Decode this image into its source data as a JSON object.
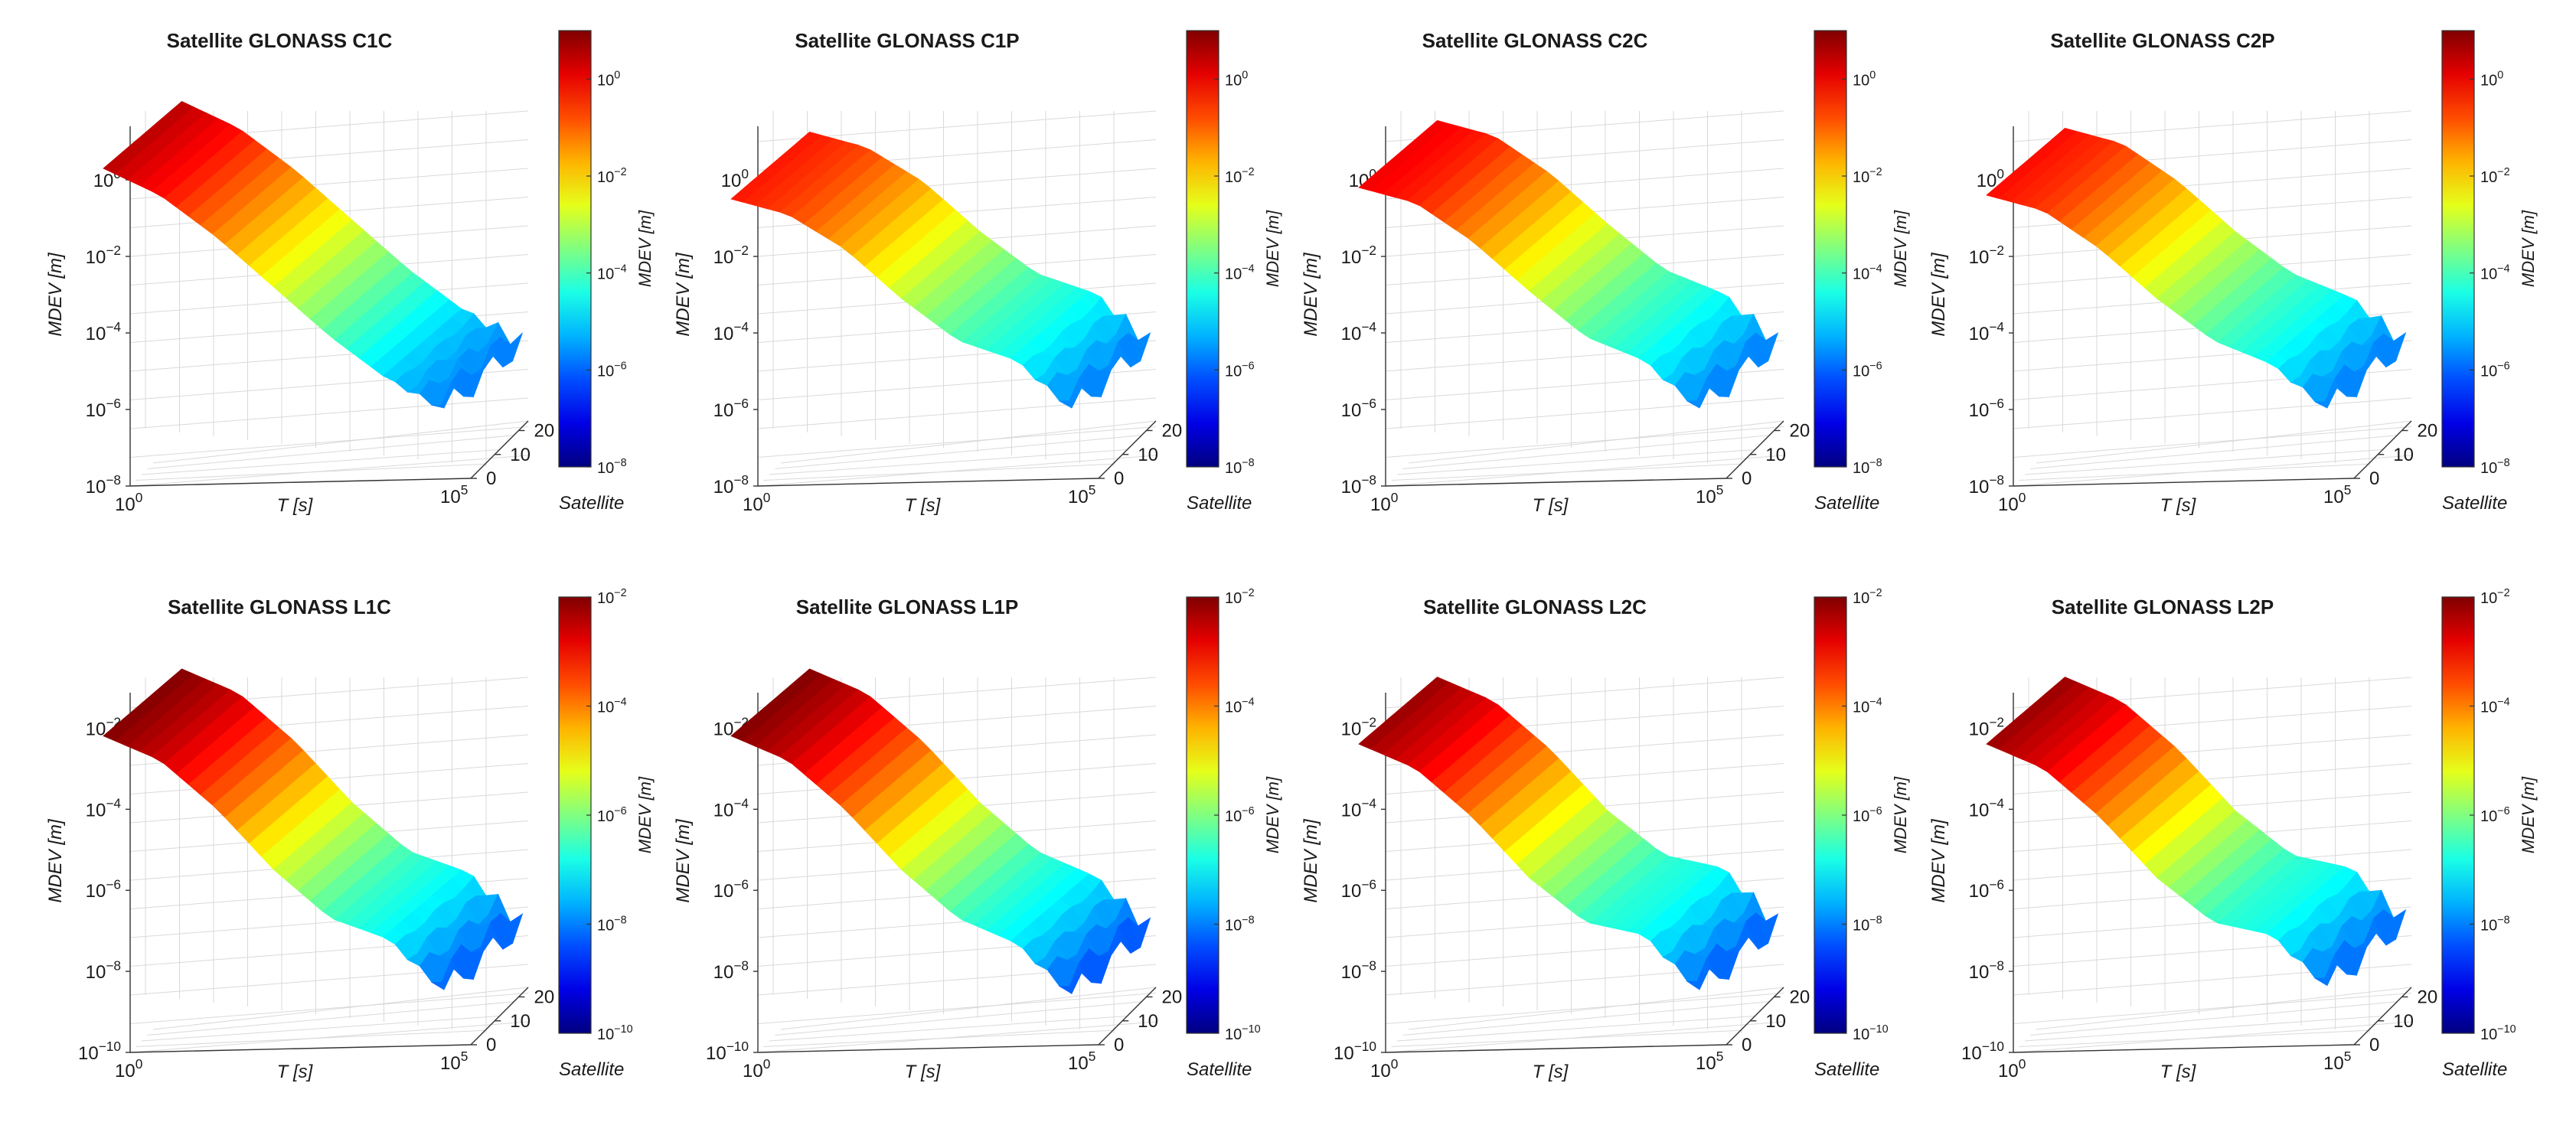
{
  "figure": {
    "panels": [
      {
        "title": "Satellite GLONASS C1C",
        "ylabel": "MDEV [m]",
        "xlabel": "T [s]",
        "zlabel": "Satellite",
        "cblabel": "MDEV [m]"
      },
      {
        "title": "Satellite GLONASS C1P",
        "ylabel": "MDEV [m]",
        "xlabel": "T [s]",
        "zlabel": "Satellite",
        "cblabel": "MDEV [m]"
      },
      {
        "title": "Satellite GLONASS C2C",
        "ylabel": "MDEV [m]",
        "xlabel": "T [s]",
        "zlabel": "Satellite",
        "cblabel": "MDEV [m]"
      },
      {
        "title": "Satellite GLONASS C2P",
        "ylabel": "MDEV [m]",
        "xlabel": "T [s]",
        "zlabel": "Satellite",
        "cblabel": "MDEV [m]"
      },
      {
        "title": "Satellite GLONASS L1C",
        "ylabel": "MDEV [m]",
        "xlabel": "T [s]",
        "zlabel": "Satellite",
        "cblabel": "MDEV [m]"
      },
      {
        "title": "Satellite GLONASS L1P",
        "ylabel": "MDEV [m]",
        "xlabel": "T [s]",
        "zlabel": "Satellite",
        "cblabel": "MDEV [m]"
      },
      {
        "title": "Satellite GLONASS L2C",
        "ylabel": "MDEV [m]",
        "xlabel": "T [s]",
        "zlabel": "Satellite",
        "cblabel": "MDEV [m]"
      },
      {
        "title": "Satellite GLONASS L2P",
        "ylabel": "MDEV [m]",
        "xlabel": "T [s]",
        "zlabel": "Satellite",
        "cblabel": "MDEV [m]"
      }
    ]
  },
  "chart_data": [
    {
      "type": "surface",
      "title": "Satellite GLONASS C1C",
      "xlabel": "T [s]",
      "ylabel": "MDEV [m]",
      "zlabel": "Satellite",
      "colorbar_label": "MDEV [m]",
      "x_scale": "log",
      "x_range_exp": [
        0,
        5
      ],
      "x_ticks_exp": [
        0,
        5
      ],
      "y_scale": "log",
      "y_range_exp": [
        -8,
        1
      ],
      "y_ticks_exp": [
        0,
        -2,
        -4,
        -6,
        -8
      ],
      "sat_ticks": [
        0,
        10,
        20
      ],
      "colorbar_ticks_exp": [
        0,
        -2,
        -4,
        -6,
        -8
      ],
      "colorbar_range_exp": [
        -8,
        1
      ],
      "mdev_exp_along_T": [
        0.5,
        -0.2,
        -1.3,
        -2.6,
        -3.9,
        -5.0,
        -5.8
      ]
    },
    {
      "type": "surface",
      "title": "Satellite GLONASS C1P",
      "xlabel": "T [s]",
      "ylabel": "MDEV [m]",
      "zlabel": "Satellite",
      "colorbar_label": "MDEV [m]",
      "x_scale": "log",
      "x_range_exp": [
        0,
        5
      ],
      "x_ticks_exp": [
        0,
        5
      ],
      "y_scale": "log",
      "y_range_exp": [
        -8,
        1
      ],
      "y_ticks_exp": [
        0,
        -2,
        -4,
        -6,
        -8
      ],
      "sat_ticks": [
        0,
        10,
        20
      ],
      "colorbar_ticks_exp": [
        0,
        -2,
        -4,
        -6,
        -8
      ],
      "colorbar_range_exp": [
        -8,
        1
      ],
      "mdev_exp_along_T": [
        -0.3,
        -0.7,
        -1.6,
        -2.9,
        -4.0,
        -4.5,
        -5.8
      ]
    },
    {
      "type": "surface",
      "title": "Satellite GLONASS C2C",
      "xlabel": "T [s]",
      "ylabel": "MDEV [m]",
      "zlabel": "Satellite",
      "colorbar_label": "MDEV [m]",
      "x_scale": "log",
      "x_range_exp": [
        0,
        5
      ],
      "x_ticks_exp": [
        0,
        5
      ],
      "y_scale": "log",
      "y_range_exp": [
        -8,
        1
      ],
      "y_ticks_exp": [
        0,
        -2,
        -4,
        -6,
        -8
      ],
      "sat_ticks": [
        0,
        10,
        20
      ],
      "colorbar_ticks_exp": [
        0,
        -2,
        -4,
        -6,
        -8
      ],
      "colorbar_range_exp": [
        -8,
        1
      ],
      "mdev_exp_along_T": [
        0.0,
        -0.4,
        -1.4,
        -2.7,
        -3.9,
        -4.5,
        -5.8
      ]
    },
    {
      "type": "surface",
      "title": "Satellite GLONASS C2P",
      "xlabel": "T [s]",
      "ylabel": "MDEV [m]",
      "zlabel": "Satellite",
      "colorbar_label": "MDEV [m]",
      "x_scale": "log",
      "x_range_exp": [
        0,
        5
      ],
      "x_ticks_exp": [
        0,
        5
      ],
      "y_scale": "log",
      "y_range_exp": [
        -8,
        1
      ],
      "y_ticks_exp": [
        0,
        -2,
        -4,
        -6,
        -8
      ],
      "sat_ticks": [
        0,
        10,
        20
      ],
      "colorbar_ticks_exp": [
        0,
        -2,
        -4,
        -6,
        -8
      ],
      "colorbar_range_exp": [
        -8,
        1
      ],
      "mdev_exp_along_T": [
        -0.2,
        -0.6,
        -1.6,
        -2.9,
        -4.0,
        -4.6,
        -5.8
      ]
    },
    {
      "type": "surface",
      "title": "Satellite GLONASS L1C",
      "xlabel": "T [s]",
      "ylabel": "MDEV [m]",
      "zlabel": "Satellite",
      "colorbar_label": "MDEV [m]",
      "x_scale": "log",
      "x_range_exp": [
        0,
        5
      ],
      "x_ticks_exp": [
        0,
        5
      ],
      "y_scale": "log",
      "y_range_exp": [
        -10,
        -1.5
      ],
      "y_ticks_exp": [
        -2,
        -4,
        -6,
        -8,
        -10
      ],
      "sat_ticks": [
        0,
        10,
        20
      ],
      "colorbar_ticks_exp": [
        -2,
        -4,
        -6,
        -8,
        -10
      ],
      "colorbar_range_exp": [
        -10,
        -2
      ],
      "mdev_exp_along_T": [
        -2.0,
        -2.6,
        -3.8,
        -5.3,
        -6.5,
        -7.0,
        -8.3
      ]
    },
    {
      "type": "surface",
      "title": "Satellite GLONASS L1P",
      "xlabel": "T [s]",
      "ylabel": "MDEV [m]",
      "zlabel": "Satellite",
      "colorbar_label": "MDEV [m]",
      "x_scale": "log",
      "x_range_exp": [
        0,
        5
      ],
      "x_ticks_exp": [
        0,
        5
      ],
      "y_scale": "log",
      "y_range_exp": [
        -10,
        -1.5
      ],
      "y_ticks_exp": [
        -2,
        -4,
        -6,
        -8,
        -10
      ],
      "sat_ticks": [
        0,
        10,
        20
      ],
      "colorbar_ticks_exp": [
        -2,
        -4,
        -6,
        -8,
        -10
      ],
      "colorbar_range_exp": [
        -10,
        -2
      ],
      "mdev_exp_along_T": [
        -2.0,
        -2.6,
        -3.8,
        -5.3,
        -6.5,
        -7.1,
        -8.4
      ]
    },
    {
      "type": "surface",
      "title": "Satellite GLONASS L2C",
      "xlabel": "T [s]",
      "ylabel": "MDEV [m]",
      "zlabel": "Satellite",
      "colorbar_label": "MDEV [m]",
      "x_scale": "log",
      "x_range_exp": [
        0,
        5
      ],
      "x_ticks_exp": [
        0,
        5
      ],
      "y_scale": "log",
      "y_range_exp": [
        -10,
        -1.5
      ],
      "y_ticks_exp": [
        -2,
        -4,
        -6,
        -8,
        -10
      ],
      "sat_ticks": [
        0,
        10,
        20
      ],
      "colorbar_ticks_exp": [
        -2,
        -4,
        -6,
        -8,
        -10
      ],
      "colorbar_range_exp": [
        -10,
        -2
      ],
      "mdev_exp_along_T": [
        -2.2,
        -2.8,
        -4.0,
        -5.5,
        -6.6,
        -6.9,
        -8.3
      ]
    },
    {
      "type": "surface",
      "title": "Satellite GLONASS L2P",
      "xlabel": "T [s]",
      "ylabel": "MDEV [m]",
      "zlabel": "Satellite",
      "colorbar_label": "MDEV [m]",
      "x_scale": "log",
      "x_range_exp": [
        0,
        5
      ],
      "x_ticks_exp": [
        0,
        5
      ],
      "y_scale": "log",
      "y_range_exp": [
        -10,
        -1.5
      ],
      "y_ticks_exp": [
        -2,
        -4,
        -6,
        -8,
        -10
      ],
      "sat_ticks": [
        0,
        10,
        20
      ],
      "colorbar_ticks_exp": [
        -2,
        -4,
        -6,
        -8,
        -10
      ],
      "colorbar_range_exp": [
        -10,
        -2
      ],
      "mdev_exp_along_T": [
        -2.2,
        -2.8,
        -4.0,
        -5.5,
        -6.6,
        -6.9,
        -8.2
      ]
    }
  ]
}
